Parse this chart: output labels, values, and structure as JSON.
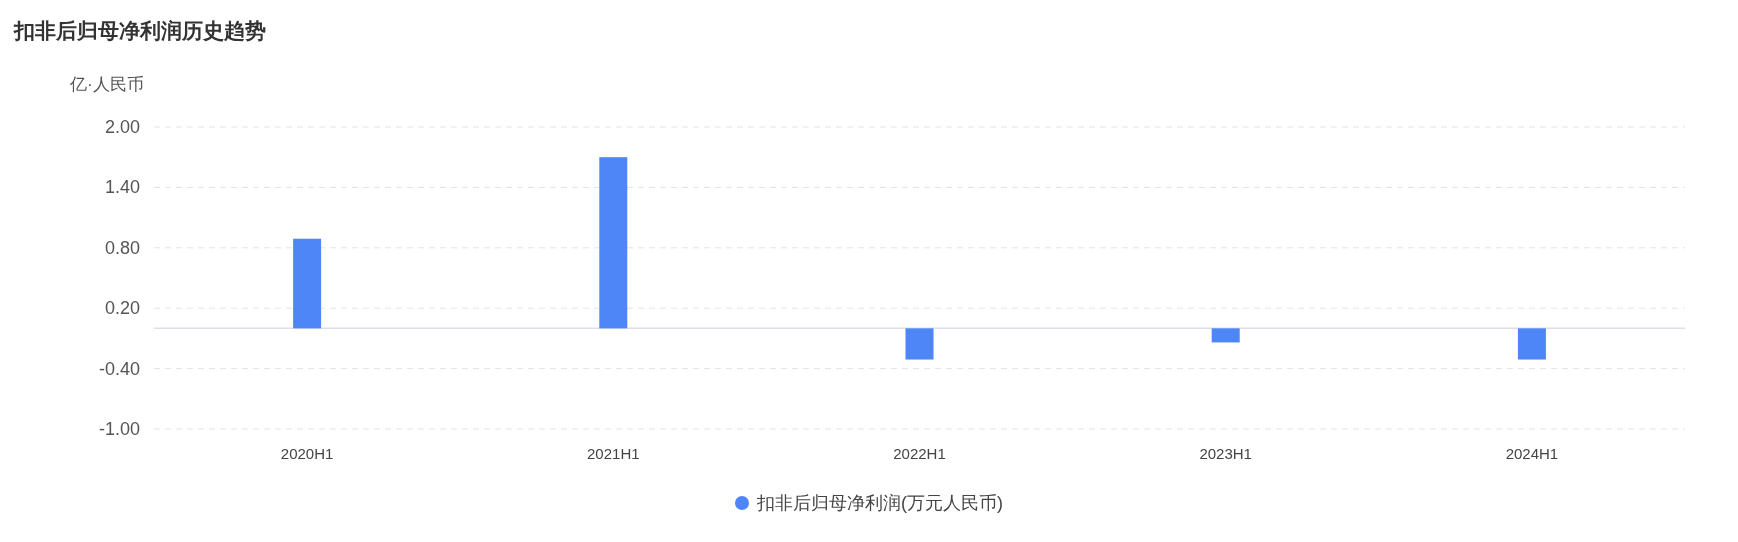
{
  "chart_data": {
    "type": "bar",
    "title": "扣非后归母净利润历史趋势",
    "ylabel": "亿·人民币",
    "categories": [
      "2020H1",
      "2021H1",
      "2022H1",
      "2023H1",
      "2024H1"
    ],
    "series": [
      {
        "name": "扣非后归母净利润(万元人民币)",
        "color": "#4f86f7",
        "values": [
          0.89,
          1.7,
          -0.31,
          -0.14,
          -0.31
        ]
      }
    ],
    "ylim": [
      -1.0,
      2.0
    ],
    "yticks": [
      {
        "value": -1.0,
        "label": "-1.00"
      },
      {
        "value": -0.4,
        "label": "-0.40"
      },
      {
        "value": 0.2,
        "label": "0.20"
      },
      {
        "value": 0.8,
        "label": "0.80"
      },
      {
        "value": 1.4,
        "label": "1.40"
      },
      {
        "value": 2.0,
        "label": "2.00"
      }
    ],
    "grid": "y",
    "legend": "bottom"
  }
}
